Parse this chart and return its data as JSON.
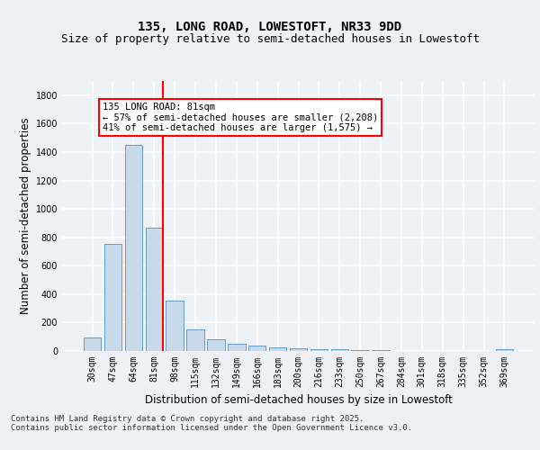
{
  "title_line1": "135, LONG ROAD, LOWESTOFT, NR33 9DD",
  "title_line2": "Size of property relative to semi-detached houses in Lowestoft",
  "xlabel": "Distribution of semi-detached houses by size in Lowestoft",
  "ylabel": "Number of semi-detached properties",
  "categories": [
    "30sqm",
    "47sqm",
    "64sqm",
    "81sqm",
    "98sqm",
    "115sqm",
    "132sqm",
    "149sqm",
    "166sqm",
    "183sqm",
    "200sqm",
    "216sqm",
    "233sqm",
    "250sqm",
    "267sqm",
    "284sqm",
    "301sqm",
    "318sqm",
    "335sqm",
    "352sqm",
    "369sqm"
  ],
  "values": [
    95,
    755,
    1450,
    865,
    355,
    155,
    80,
    52,
    38,
    25,
    18,
    12,
    10,
    8,
    5,
    3,
    3,
    2,
    1,
    1,
    12
  ],
  "bar_color": "#c8d9ea",
  "bar_edge_color": "#5090c0",
  "vline_x_pos": 3.42,
  "vline_color": "red",
  "annotation_text": "135 LONG ROAD: 81sqm\n← 57% of semi-detached houses are smaller (2,208)\n41% of semi-detached houses are larger (1,575) →",
  "annotation_box_color": "white",
  "annotation_box_edge_color": "red",
  "ylim": [
    0,
    1900
  ],
  "yticks": [
    0,
    200,
    400,
    600,
    800,
    1000,
    1200,
    1400,
    1600,
    1800
  ],
  "footer_text": "Contains HM Land Registry data © Crown copyright and database right 2025.\nContains public sector information licensed under the Open Government Licence v3.0.",
  "background_color": "#eef2f7",
  "plot_background_color": "#eef2f7",
  "grid_color": "white",
  "title_fontsize": 10,
  "subtitle_fontsize": 9,
  "tick_fontsize": 7,
  "label_fontsize": 8.5,
  "annotation_fontsize": 7.5,
  "footer_fontsize": 6.5
}
